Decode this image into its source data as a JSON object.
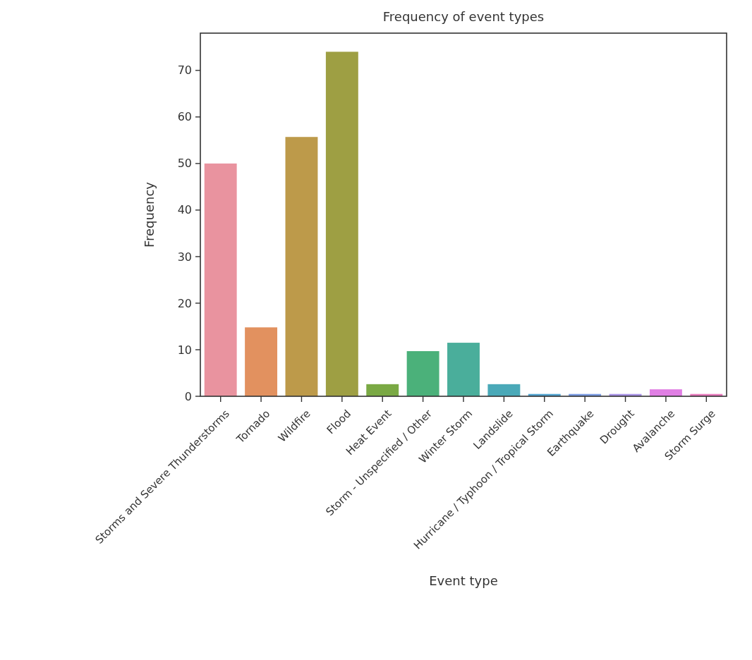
{
  "chart_data": {
    "type": "bar",
    "title": "Frequency of event types",
    "xlabel": "Event type",
    "ylabel": "Frequency",
    "categories": [
      "Storms and Severe Thunderstorms",
      "Tornado",
      "Wildfire",
      "Flood",
      "Heat Event",
      "Storm - Unspecified / Other",
      "Winter Storm",
      "Landslide",
      "Hurricane / Typhoon / Tropical Storm",
      "Earthquake",
      "Drought",
      "Avalanche",
      "Storm Surge"
    ],
    "values": [
      50,
      14.8,
      55.7,
      74,
      2.6,
      9.7,
      11.5,
      2.6,
      0.5,
      0.5,
      0.5,
      1.5,
      0.5
    ],
    "colors": [
      "#e9939f",
      "#e2915f",
      "#bd9a4a",
      "#9e9f43",
      "#7aa944",
      "#4bb17a",
      "#4aae9b",
      "#4aa9b8",
      "#52a3cf",
      "#7b9be2",
      "#a993e6",
      "#e07fe4",
      "#e87bbd"
    ],
    "ylim": [
      0,
      78
    ],
    "yticks": [
      0,
      10,
      20,
      30,
      40,
      50,
      60,
      70
    ],
    "grid": false
  }
}
